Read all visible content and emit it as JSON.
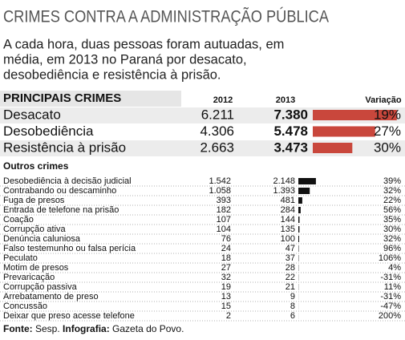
{
  "title": "CRIMES CONTRA A ADMINISTRAÇÃO PÚBLICA",
  "subtitle": [
    "A cada hora, duas pessoas foram autuadas, em",
    "média, em 2013 no Paraná por desacato,",
    "desobediência e resistência à prisão."
  ],
  "main": {
    "heading": "PRINCIPAIS CRIMES",
    "columns": [
      "2012",
      "2013",
      "Variação"
    ],
    "bar_color": "#c9473c",
    "rows": [
      {
        "name": "Desacato",
        "v2012": "6.211",
        "v2013": 7380,
        "v2013_label": "7.380",
        "change": "19%"
      },
      {
        "name": "Desobediência",
        "v2012": "4.306",
        "v2013": 5478,
        "v2013_label": "5.478",
        "change": "27%"
      },
      {
        "name": "Resistência à prisão",
        "v2012": "2.663",
        "v2013": 3473,
        "v2013_label": "3.473",
        "change": "30%"
      }
    ]
  },
  "others": {
    "heading": "Outros crimes",
    "bar_color": "#111111",
    "rows": [
      {
        "name": "Desobediência à decisão judicial",
        "v2012": "1.542",
        "v2013": 2148,
        "v2013_label": "2.148",
        "change": "39%"
      },
      {
        "name": "Contrabando ou descaminho",
        "v2012": "1.058",
        "v2013": 1393,
        "v2013_label": "1.393",
        "change": "32%"
      },
      {
        "name": "Fuga de presos",
        "v2012": "393",
        "v2013": 481,
        "v2013_label": "481",
        "change": "22%"
      },
      {
        "name": "Entrada de telefone na prisão",
        "v2012": "182",
        "v2013": 284,
        "v2013_label": "284",
        "change": "56%"
      },
      {
        "name": "Coação",
        "v2012": "107",
        "v2013": 144,
        "v2013_label": "144",
        "change": "35%"
      },
      {
        "name": "Corrupção ativa",
        "v2012": "104",
        "v2013": 135,
        "v2013_label": "135",
        "change": "30%"
      },
      {
        "name": "Denúncia caluniosa",
        "v2012": "76",
        "v2013": 100,
        "v2013_label": "100",
        "change": "32%"
      },
      {
        "name": "Falso testemunho ou falsa perícia",
        "v2012": "24",
        "v2013": 47,
        "v2013_label": "47",
        "change": "96%"
      },
      {
        "name": "Peculato",
        "v2012": "18",
        "v2013": 37,
        "v2013_label": "37",
        "change": "106%"
      },
      {
        "name": "Motim de presos",
        "v2012": "27",
        "v2013": 28,
        "v2013_label": "28",
        "change": "4%"
      },
      {
        "name": "Prevaricação",
        "v2012": "32",
        "v2013": 22,
        "v2013_label": "22",
        "change": "-31%"
      },
      {
        "name": "Corrupção passiva",
        "v2012": "19",
        "v2013": 21,
        "v2013_label": "21",
        "change": "11%"
      },
      {
        "name": "Arrebatamento de preso",
        "v2012": "13",
        "v2013": 9,
        "v2013_label": "9",
        "change": "-31%"
      },
      {
        "name": "Concussão",
        "v2012": "15",
        "v2013": 8,
        "v2013_label": "8",
        "change": "-47%"
      },
      {
        "name": "Deixar que preso acesse telefone",
        "v2012": "2",
        "v2013": 6,
        "v2013_label": "6",
        "change": "200%"
      }
    ]
  },
  "footer": {
    "source_label": "Fonte:",
    "source": "Sesp.",
    "credit_label": "Infografia:",
    "credit": "Gazeta do Povo."
  }
}
